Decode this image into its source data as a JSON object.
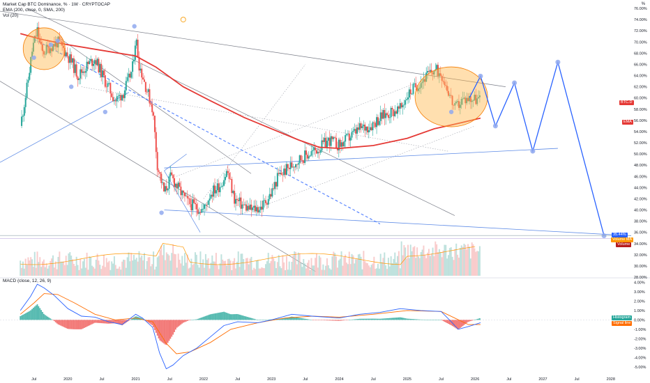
{
  "header": {
    "title": "Market Cap BTC Dominance, %  · 1W · CRYPTOCAP",
    "ema_label": "EMA (200, close, 0, SMA, 200)",
    "vol_label": "Vol (20)",
    "macd_label": "MACD (close, 12, 26, 9)",
    "axis_unit": "%"
  },
  "colors": {
    "up": "#26a69a",
    "down": "#ef5350",
    "ema": "#e53935",
    "trend_blue": "#2962ff",
    "trend_grey": "#787b86",
    "highlight_circle": "#ffb74d",
    "macd_line": "#2962ff",
    "signal_line": "#ff6d00"
  },
  "tags": {
    "btc_d": "BTC.D",
    "btc_d_value": "59.60%",
    "ema": "EMA",
    "ema_value": "56.40%",
    "level": "35.44%",
    "volume_ma": "Volume MA",
    "volume": "Volume",
    "histogram": "Histogram",
    "signal_line": "Signal line"
  },
  "chart_data": [
    {
      "type": "candlestick",
      "title": "Market Cap BTC Dominance, % · 1W · CRYPTOCAP",
      "x_ticks": [
        "Jul",
        "2020",
        "Jul",
        "2021",
        "Jul",
        "2022",
        "Jul",
        "2023",
        "Jul",
        "2024",
        "Jul",
        "2025",
        "Jul",
        "2026",
        "Jul",
        "2027",
        "Jul",
        "2028"
      ],
      "y_ticks": [
        "28.00%",
        "30.00%",
        "32.00%",
        "34.00%",
        "36.00%",
        "38.00%",
        "40.00%",
        "42.00%",
        "44.00%",
        "46.00%",
        "48.00%",
        "50.00%",
        "52.00%",
        "54.00%",
        "56.00%",
        "58.00%",
        "60.00%",
        "62.00%",
        "64.00%",
        "66.00%",
        "68.00%",
        "70.00%",
        "72.00%",
        "74.00%",
        "76.00%"
      ],
      "ylim": [
        28,
        76.5
      ],
      "price_path": [
        [
          2019.3,
          55
        ],
        [
          2019.4,
          62
        ],
        [
          2019.48,
          69
        ],
        [
          2019.55,
          72
        ],
        [
          2019.62,
          68
        ],
        [
          2019.72,
          69
        ],
        [
          2019.85,
          70
        ],
        [
          2019.95,
          68.5
        ],
        [
          2020.05,
          66.5
        ],
        [
          2020.15,
          64
        ],
        [
          2020.3,
          66
        ],
        [
          2020.4,
          67
        ],
        [
          2020.55,
          63
        ],
        [
          2020.7,
          59.5
        ],
        [
          2020.82,
          61
        ],
        [
          2020.95,
          65
        ],
        [
          2021.0,
          71
        ],
        [
          2021.05,
          66
        ],
        [
          2021.15,
          62
        ],
        [
          2021.25,
          58
        ],
        [
          2021.32,
          48
        ],
        [
          2021.42,
          43
        ],
        [
          2021.52,
          46
        ],
        [
          2021.62,
          44
        ],
        [
          2021.75,
          41.5
        ],
        [
          2021.88,
          40.5
        ],
        [
          2022.0,
          40
        ],
        [
          2022.1,
          43
        ],
        [
          2022.25,
          44.5
        ],
        [
          2022.35,
          47
        ],
        [
          2022.45,
          42
        ],
        [
          2022.55,
          41
        ],
        [
          2022.7,
          40
        ],
        [
          2022.85,
          40.5
        ],
        [
          2023.0,
          43
        ],
        [
          2023.1,
          46
        ],
        [
          2023.25,
          47.5
        ],
        [
          2023.4,
          49
        ],
        [
          2023.55,
          50
        ],
        [
          2023.7,
          51
        ],
        [
          2023.85,
          52.5
        ],
        [
          2024.0,
          51.5
        ],
        [
          2024.15,
          53
        ],
        [
          2024.3,
          54.5
        ],
        [
          2024.45,
          55
        ],
        [
          2024.6,
          56.5
        ],
        [
          2024.75,
          57.5
        ],
        [
          2024.9,
          58
        ],
        [
          2025.0,
          60.5
        ],
        [
          2025.12,
          62
        ],
        [
          2025.25,
          63.5
        ],
        [
          2025.4,
          65
        ],
        [
          2025.5,
          64.5
        ],
        [
          2025.6,
          61.5
        ],
        [
          2025.7,
          58
        ],
        [
          2025.8,
          59.5
        ],
        [
          2025.9,
          60
        ],
        [
          2026.0,
          59.8
        ],
        [
          2026.08,
          59.6
        ]
      ],
      "ema_200": [
        [
          2019.3,
          71.5
        ],
        [
          2019.6,
          70.5
        ],
        [
          2020.0,
          69.5
        ],
        [
          2020.5,
          68.5
        ],
        [
          2021.0,
          67.5
        ],
        [
          2021.3,
          65.5
        ],
        [
          2021.7,
          62
        ],
        [
          2022.1,
          59.5
        ],
        [
          2022.6,
          56.5
        ],
        [
          2023.0,
          54.5
        ],
        [
          2023.4,
          52.5
        ],
        [
          2023.7,
          51.2
        ],
        [
          2024.0,
          51
        ],
        [
          2024.5,
          51.5
        ],
        [
          2025.0,
          52.8
        ],
        [
          2025.4,
          54.5
        ],
        [
          2025.8,
          55.6
        ],
        [
          2026.08,
          56.4
        ]
      ],
      "projection": [
        [
          2025.92,
          60.1
        ],
        [
          2026.08,
          63.9
        ],
        [
          2026.3,
          55.0
        ],
        [
          2026.58,
          62.7
        ],
        [
          2026.85,
          50.5
        ],
        [
          2027.22,
          66.4
        ],
        [
          2027.9,
          35.4
        ]
      ],
      "annotations": [
        "BTC.D 59.60%",
        "EMA 56.40%",
        "35.44%"
      ]
    },
    {
      "type": "bar",
      "title": "Vol (20)",
      "series": [
        {
          "name": "Volume"
        },
        {
          "name": "Volume MA"
        }
      ],
      "note": "volume histogram overlaid on lower price pane"
    },
    {
      "type": "line",
      "title": "MACD (close, 12, 26, 9)",
      "y_ticks": [
        "-5.00%",
        "-4.00%",
        "-3.00%",
        "-2.00%",
        "-1.00%",
        "0.00%",
        "1.00%",
        "2.00%",
        "3.00%",
        "4.00%"
      ],
      "ylim": [
        -5.6,
        4.4
      ],
      "macd": [
        [
          2019.3,
          1.0
        ],
        [
          2019.45,
          2.5
        ],
        [
          2019.55,
          3.8
        ],
        [
          2019.65,
          3.4
        ],
        [
          2019.8,
          2.6
        ],
        [
          2020.0,
          1.2
        ],
        [
          2020.2,
          0.4
        ],
        [
          2020.4,
          0.3
        ],
        [
          2020.6,
          -0.2
        ],
        [
          2020.8,
          -0.5
        ],
        [
          2021.0,
          0.6
        ],
        [
          2021.1,
          0.2
        ],
        [
          2021.25,
          -0.8
        ],
        [
          2021.35,
          -3.5
        ],
        [
          2021.45,
          -5.2
        ],
        [
          2021.55,
          -4.8
        ],
        [
          2021.7,
          -3.8
        ],
        [
          2021.9,
          -3.0
        ],
        [
          2022.1,
          -1.8
        ],
        [
          2022.3,
          -0.6
        ],
        [
          2022.5,
          -0.2
        ],
        [
          2022.8,
          -0.3
        ],
        [
          2023.0,
          0.0
        ],
        [
          2023.3,
          0.6
        ],
        [
          2023.6,
          0.4
        ],
        [
          2024.0,
          0.2
        ],
        [
          2024.3,
          0.6
        ],
        [
          2024.6,
          0.8
        ],
        [
          2024.9,
          1.2
        ],
        [
          2025.2,
          1.0
        ],
        [
          2025.5,
          0.9
        ],
        [
          2025.65,
          -0.2
        ],
        [
          2025.75,
          -1.0
        ],
        [
          2025.9,
          -0.7
        ],
        [
          2026.08,
          -0.3
        ]
      ],
      "signal": [
        [
          2019.3,
          0.6
        ],
        [
          2019.5,
          1.8
        ],
        [
          2019.65,
          2.8
        ],
        [
          2019.85,
          2.7
        ],
        [
          2020.1,
          1.8
        ],
        [
          2020.4,
          0.6
        ],
        [
          2020.7,
          0.0
        ],
        [
          2021.0,
          0.2
        ],
        [
          2021.25,
          -0.2
        ],
        [
          2021.45,
          -2.5
        ],
        [
          2021.6,
          -3.6
        ],
        [
          2021.8,
          -3.4
        ],
        [
          2022.1,
          -2.4
        ],
        [
          2022.4,
          -1.0
        ],
        [
          2022.8,
          -0.3
        ],
        [
          2023.2,
          0.2
        ],
        [
          2023.6,
          0.4
        ],
        [
          2024.0,
          0.3
        ],
        [
          2024.5,
          0.6
        ],
        [
          2025.0,
          1.0
        ],
        [
          2025.5,
          0.9
        ],
        [
          2025.7,
          0.2
        ],
        [
          2025.9,
          -0.5
        ],
        [
          2026.08,
          -0.5
        ]
      ]
    }
  ]
}
